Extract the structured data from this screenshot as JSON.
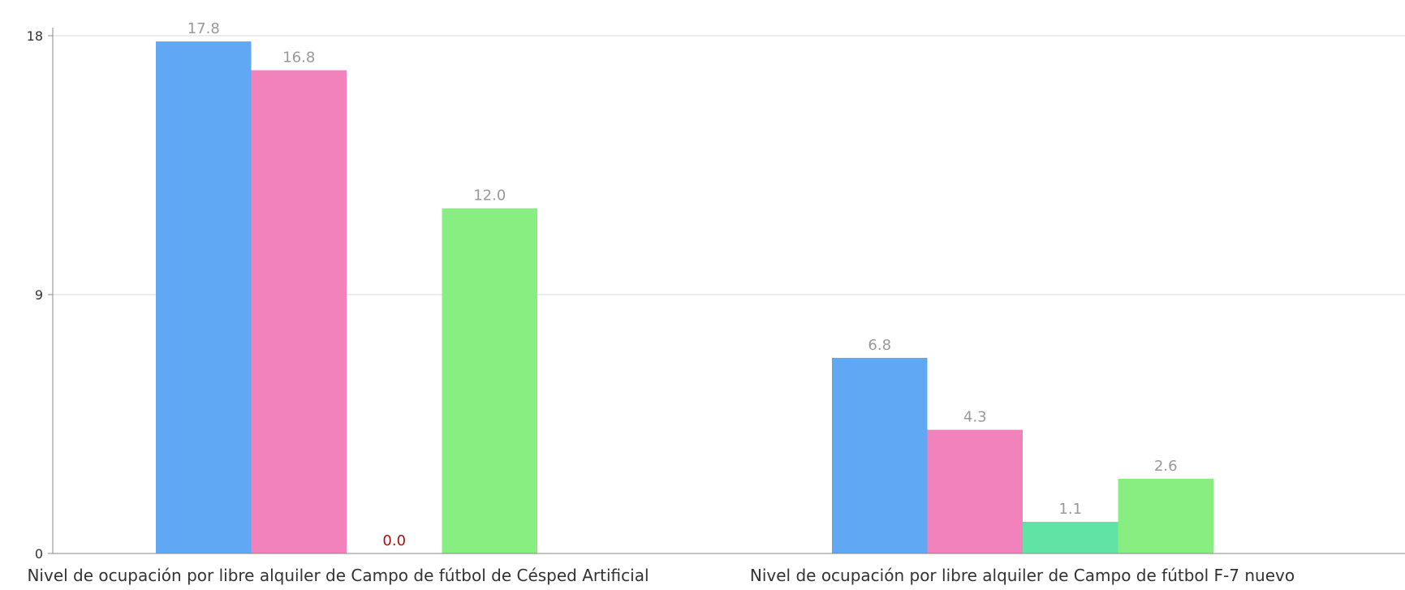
{
  "chart_data": {
    "type": "bar",
    "categories": [
      "Nivel de ocupación por libre alquiler de Campo de fútbol de Césped Artificial",
      "Nivel de ocupación por libre alquiler de Campo de fútbol F-7 nuevo"
    ],
    "series": [
      {
        "values": [
          17.8,
          6.8
        ],
        "color": "#60a8f4"
      },
      {
        "values": [
          16.8,
          4.3
        ],
        "color": "#f182bb"
      },
      {
        "values": [
          0.0,
          1.1
        ],
        "color": "#62e3a6"
      },
      {
        "values": [
          12.0,
          2.6
        ],
        "color": "#88ee81"
      }
    ],
    "value_labels": [
      [
        "17.8",
        "6.8"
      ],
      [
        "16.8",
        "4.3"
      ],
      [
        "0.0",
        "1.1"
      ],
      [
        "12.0",
        "2.6"
      ]
    ],
    "y_ticks": [
      {
        "value": 0,
        "label": "0"
      },
      {
        "value": 9,
        "label": "9"
      },
      {
        "value": 18,
        "label": "18"
      }
    ],
    "ylim": [
      0,
      18
    ],
    "grid": true,
    "legend": "none",
    "title": "",
    "xlabel": "",
    "ylabel": "",
    "colors": {
      "grid": "#e6e6e6",
      "axis": "#888888",
      "zero_label": "#aa1111"
    }
  }
}
